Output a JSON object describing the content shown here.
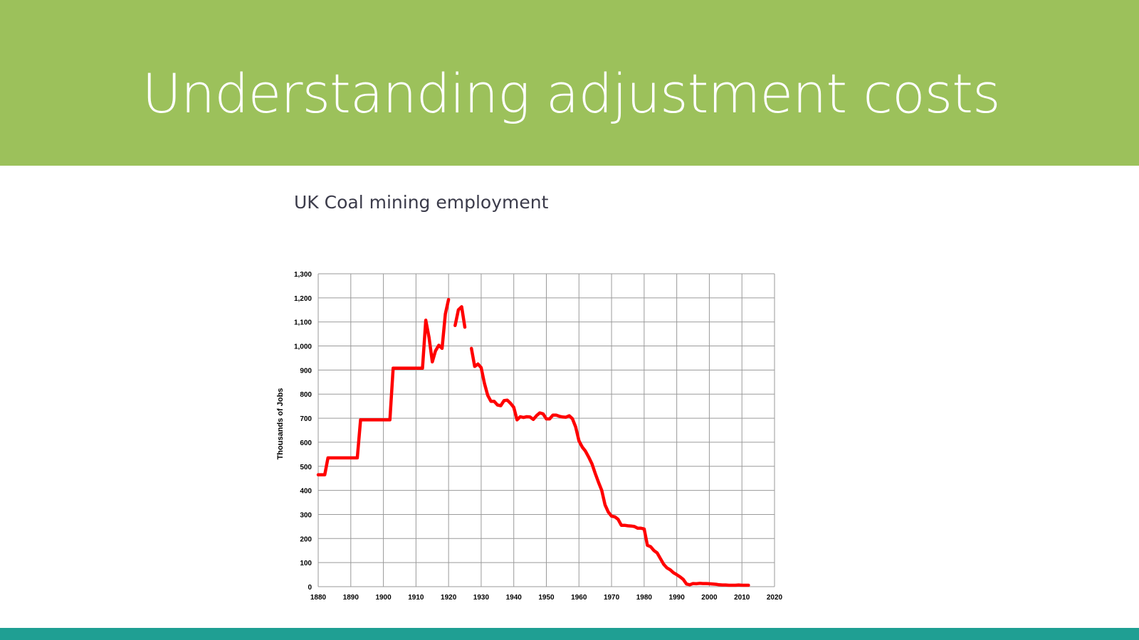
{
  "slide": {
    "title": "Understanding adjustment costs",
    "subtitle": "UK Coal mining employment"
  },
  "colors": {
    "header_bg": "#9cc15b",
    "footer_bg": "#1f9f93",
    "series_line": "#ff0000",
    "grid": "#9a9a9a"
  },
  "chart_data": {
    "type": "line",
    "title": "",
    "xlabel": "",
    "ylabel": "Thousands of Jobs",
    "xlim": [
      1880,
      2020
    ],
    "ylim": [
      0,
      1300
    ],
    "x_ticks": [
      1880,
      1890,
      1900,
      1910,
      1920,
      1930,
      1940,
      1950,
      1960,
      1970,
      1980,
      1990,
      2000,
      2010,
      2020
    ],
    "y_ticks": [
      0,
      100,
      200,
      300,
      400,
      500,
      600,
      700,
      800,
      900,
      1000,
      1100,
      1200,
      1300
    ],
    "y_tick_labels": [
      "0",
      "100",
      "200",
      "300",
      "400",
      "500",
      "600",
      "700",
      "800",
      "900",
      "1,000",
      "1,100",
      "1,200",
      "1,300"
    ],
    "grid": true,
    "legend": "none",
    "series": [
      {
        "segments": [
          [
            [
              1880,
              465
            ],
            [
              1882,
              465
            ],
            [
              1883,
              535
            ],
            [
              1885,
              535
            ],
            [
              1892,
              535
            ],
            [
              1893,
              693
            ],
            [
              1895,
              693
            ],
            [
              1902,
              693
            ],
            [
              1903,
              908
            ],
            [
              1905,
              908
            ],
            [
              1912,
              908
            ],
            [
              1913,
              1107
            ],
            [
              1914,
              1035
            ],
            [
              1915,
              934
            ],
            [
              1916,
              980
            ],
            [
              1917,
              1003
            ],
            [
              1918,
              990
            ],
            [
              1919,
              1133
            ],
            [
              1920,
              1193
            ]
          ],
          [
            [
              1922,
              1085
            ],
            [
              1923,
              1150
            ],
            [
              1924,
              1163
            ],
            [
              1925,
              1078
            ]
          ],
          [
            [
              1927,
              990
            ],
            [
              1928,
              915
            ],
            [
              1929,
              925
            ],
            [
              1930,
              910
            ],
            [
              1931,
              845
            ],
            [
              1932,
              795
            ],
            [
              1933,
              770
            ],
            [
              1934,
              770
            ],
            [
              1935,
              755
            ],
            [
              1936,
              752
            ],
            [
              1937,
              773
            ],
            [
              1938,
              775
            ],
            [
              1939,
              762
            ],
            [
              1940,
              745
            ],
            [
              1941,
              693
            ],
            [
              1942,
              706
            ],
            [
              1943,
              703
            ],
            [
              1944,
              706
            ],
            [
              1945,
              705
            ],
            [
              1946,
              695
            ],
            [
              1947,
              711
            ],
            [
              1948,
              722
            ],
            [
              1949,
              718
            ],
            [
              1950,
              697
            ],
            [
              1951,
              697
            ],
            [
              1952,
              713
            ],
            [
              1953,
              713
            ],
            [
              1954,
              708
            ],
            [
              1955,
              705
            ],
            [
              1956,
              704
            ],
            [
              1957,
              710
            ],
            [
              1958,
              698
            ],
            [
              1959,
              663
            ],
            [
              1960,
              606
            ],
            [
              1961,
              580
            ],
            [
              1962,
              563
            ],
            [
              1963,
              538
            ],
            [
              1964,
              510
            ],
            [
              1965,
              470
            ],
            [
              1966,
              433
            ],
            [
              1967,
              400
            ],
            [
              1968,
              340
            ],
            [
              1969,
              310
            ],
            [
              1970,
              293
            ],
            [
              1971,
              290
            ],
            [
              1972,
              280
            ],
            [
              1973,
              255
            ],
            [
              1974,
              255
            ],
            [
              1975,
              253
            ],
            [
              1976,
              252
            ],
            [
              1977,
              250
            ],
            [
              1978,
              243
            ],
            [
              1979,
              243
            ],
            [
              1980,
              240
            ],
            [
              1981,
              172
            ],
            [
              1982,
              166
            ],
            [
              1983,
              150
            ],
            [
              1984,
              140
            ],
            [
              1985,
              116
            ],
            [
              1986,
              93
            ],
            [
              1987,
              78
            ],
            [
              1988,
              70
            ],
            [
              1989,
              58
            ],
            [
              1990,
              50
            ],
            [
              1991,
              41
            ],
            [
              1992,
              30
            ],
            [
              1993,
              11
            ],
            [
              1994,
              8
            ],
            [
              1995,
              13
            ],
            [
              1996,
              12
            ],
            [
              1997,
              14
            ],
            [
              1998,
              13
            ],
            [
              1999,
              13
            ],
            [
              2000,
              12
            ],
            [
              2001,
              11
            ],
            [
              2002,
              10
            ],
            [
              2003,
              8
            ],
            [
              2004,
              7
            ],
            [
              2005,
              7
            ],
            [
              2006,
              6
            ],
            [
              2007,
              6
            ],
            [
              2008,
              6
            ],
            [
              2009,
              7
            ],
            [
              2010,
              6
            ],
            [
              2011,
              6
            ],
            [
              2012,
              6
            ]
          ]
        ]
      }
    ]
  }
}
